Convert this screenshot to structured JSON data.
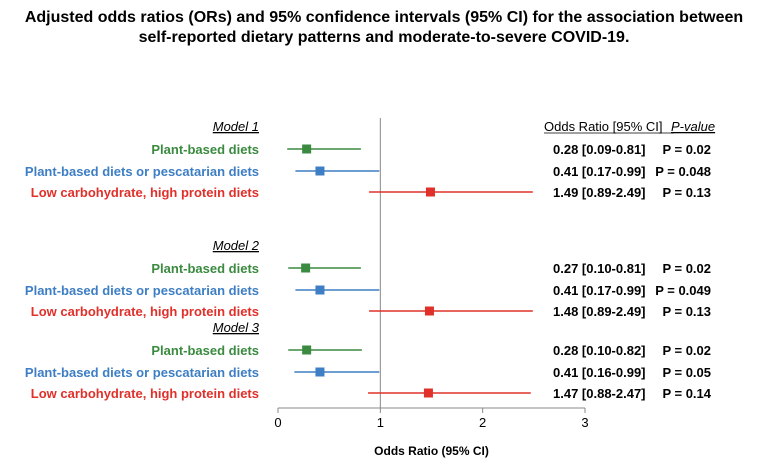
{
  "title_line1": "Adjusted odds ratios (ORs) and 95% confidence intervals (95% CI) for the association between",
  "title_line2": "self-reported dietary patterns and moderate-to-severe COVID-19.",
  "colors": {
    "plant": "#3a8a3f",
    "pesc": "#3d7ec4",
    "lowcarb": "#e0302a",
    "axis": "#888888"
  },
  "chart_data": {
    "type": "forest",
    "xlabel": "Odds Ratio (95% CI)",
    "xlim": [
      0,
      3
    ],
    "xticks": [
      0,
      1,
      2,
      3
    ],
    "reference_line": 1,
    "column_headers": {
      "or": "Odds Ratio [95% CI]",
      "p": "P-value"
    },
    "models": [
      {
        "name": "Model 1",
        "rows": [
          {
            "label": "Plant-based diets",
            "series": "plant",
            "or": 0.28,
            "lo": 0.09,
            "hi": 0.81,
            "or_text": "0.28 [0.09-0.81]",
            "p_text": "P = 0.02"
          },
          {
            "label": "Plant-based diets or pescatarian diets",
            "series": "pesc",
            "or": 0.41,
            "lo": 0.17,
            "hi": 0.99,
            "or_text": "0.41 [0.17-0.99]",
            "p_text": "P = 0.048"
          },
          {
            "label": "Low carbohydrate, high protein diets",
            "series": "lowcarb",
            "or": 1.49,
            "lo": 0.89,
            "hi": 2.49,
            "or_text": "1.49 [0.89-2.49]",
            "p_text": "P = 0.13"
          }
        ]
      },
      {
        "name": "Model 2",
        "rows": [
          {
            "label": "Plant-based diets",
            "series": "plant",
            "or": 0.27,
            "lo": 0.1,
            "hi": 0.81,
            "or_text": "0.27 [0.10-0.81]",
            "p_text": "P = 0.02"
          },
          {
            "label": "Plant-based diets or pescatarian diets",
            "series": "pesc",
            "or": 0.41,
            "lo": 0.17,
            "hi": 0.99,
            "or_text": "0.41 [0.17-0.99]",
            "p_text": "P = 0.049"
          },
          {
            "label": "Low carbohydrate, high protein diets",
            "series": "lowcarb",
            "or": 1.48,
            "lo": 0.89,
            "hi": 2.49,
            "or_text": "1.48 [0.89-2.49]",
            "p_text": "P = 0.13"
          }
        ]
      },
      {
        "name": "Model 3",
        "rows": [
          {
            "label": "Plant-based diets",
            "series": "plant",
            "or": 0.28,
            "lo": 0.1,
            "hi": 0.82,
            "or_text": "0.28 [0.10-0.82]",
            "p_text": "P = 0.02"
          },
          {
            "label": "Plant-based diets or pescatarian diets",
            "series": "pesc",
            "or": 0.41,
            "lo": 0.16,
            "hi": 0.99,
            "or_text": "0.41 [0.16-0.99]",
            "p_text": "P = 0.05"
          },
          {
            "label": "Low carbohydrate, high protein diets",
            "series": "lowcarb",
            "or": 1.47,
            "lo": 0.88,
            "hi": 2.47,
            "or_text": "1.47 [0.88-2.47]",
            "p_text": "P = 0.14"
          }
        ]
      }
    ]
  }
}
